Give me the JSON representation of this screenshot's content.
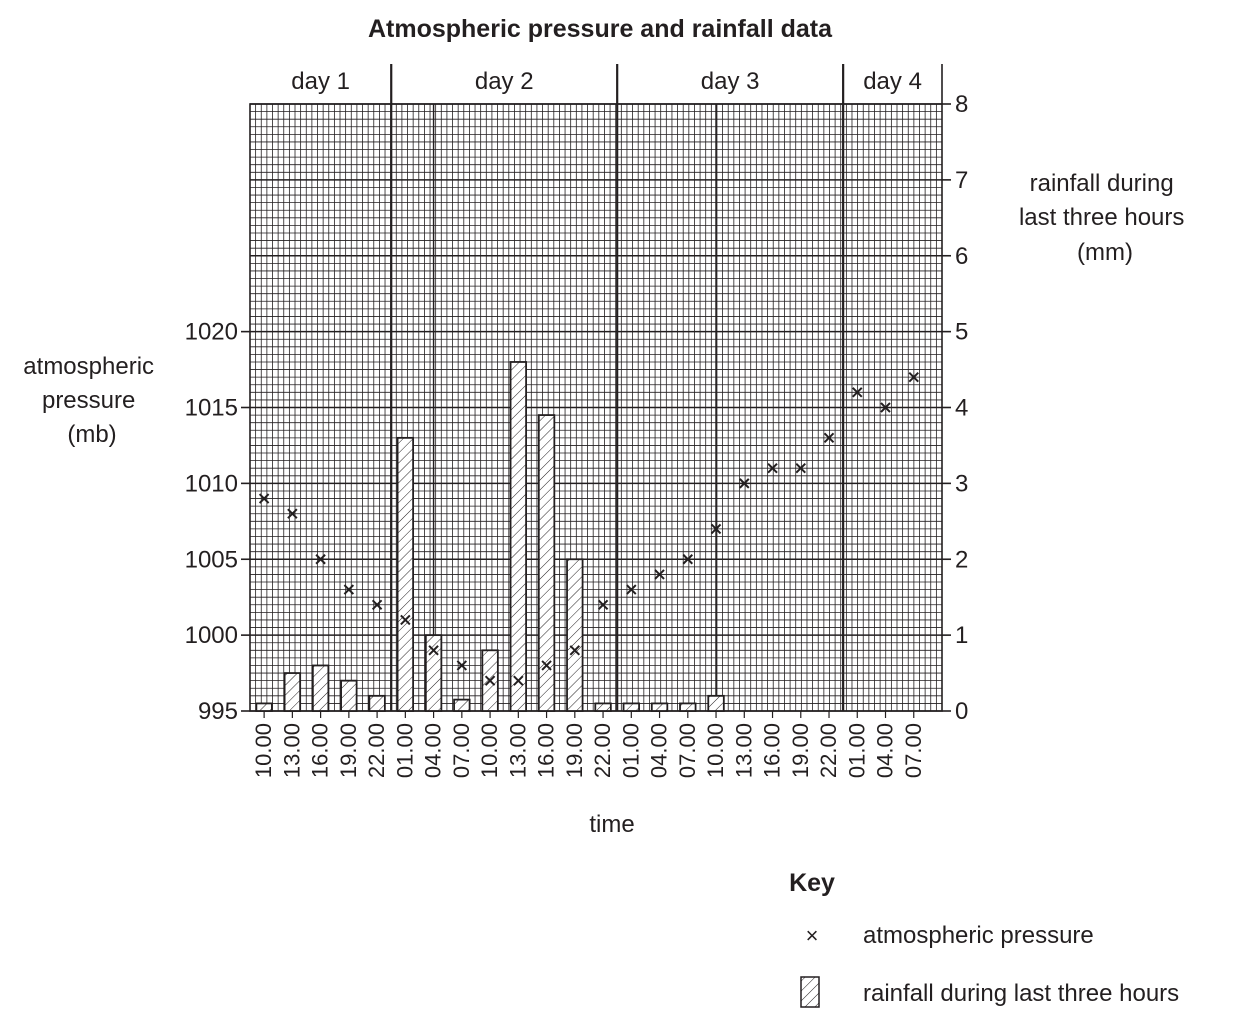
{
  "chart_data": {
    "type": "bar",
    "title": "Atmospheric pressure and rainfall data",
    "xlabel": "time",
    "categories": [
      "10.00",
      "13.00",
      "16.00",
      "19.00",
      "22.00",
      "01.00",
      "04.00",
      "07.00",
      "10.00",
      "13.00",
      "16.00",
      "19.00",
      "22.00",
      "01.00",
      "04.00",
      "07.00",
      "10.00",
      "13.00",
      "16.00",
      "19.00",
      "22.00",
      "01.00",
      "04.00",
      "07.00"
    ],
    "day_labels": [
      "day 1",
      "day 2",
      "day 3",
      "day 4"
    ],
    "day_start_indices": [
      0,
      5,
      13,
      21
    ],
    "left_axis": {
      "label_lines": [
        "atmospheric",
        "pressure",
        "(mb)"
      ],
      "ylim": [
        995,
        1035
      ],
      "ticks": [
        995,
        1000,
        1005,
        1010,
        1015,
        1020
      ]
    },
    "right_axis": {
      "label_lines": [
        "rainfall during",
        "last three hours",
        "(mm)"
      ],
      "ylim": [
        0,
        8
      ],
      "ticks": [
        0,
        1,
        2,
        3,
        4,
        5,
        6,
        7,
        8
      ]
    },
    "series": [
      {
        "name": "atmospheric pressure",
        "type": "scatter",
        "axis": "left",
        "marker": "×",
        "values": [
          1009,
          1008,
          1005,
          1003,
          1002,
          1001,
          999,
          998,
          997,
          997,
          998,
          999,
          1002,
          1003,
          1004,
          1005,
          1007,
          1010,
          1011,
          1011,
          1013,
          1016,
          1015,
          1017
        ]
      },
      {
        "name": "rainfall during last three hours",
        "type": "bar",
        "axis": "right",
        "values": [
          0.1,
          0.5,
          0.6,
          0.4,
          0.2,
          3.6,
          1.0,
          0.15,
          0.8,
          4.6,
          3.9,
          2.0,
          0.1,
          0.1,
          0.1,
          0.1,
          0.2,
          0,
          0,
          0,
          0,
          0,
          0,
          0
        ]
      }
    ],
    "grid": true,
    "legend": {
      "title": "Key",
      "position": "bottom-right"
    }
  }
}
